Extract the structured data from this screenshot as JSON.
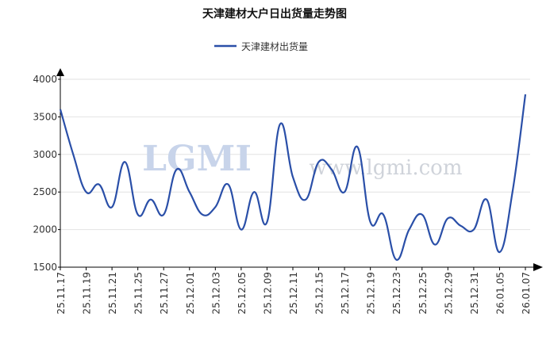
{
  "chart_data": {
    "type": "line",
    "title": "天津建材大户日出货量走势图",
    "watermark": [
      "LGMI",
      "www.lgmi.com"
    ],
    "categories": [
      "25.11.17",
      null,
      "25.11.19",
      null,
      "25.11.21",
      null,
      "25.11.25",
      null,
      "25.11.27",
      null,
      "25.12.01",
      null,
      "25.12.03",
      null,
      "25.12.05",
      null,
      "25.12.09",
      null,
      "25.12.11",
      null,
      "25.12.15",
      null,
      "25.12.17",
      null,
      "25.12.19",
      null,
      "25.12.23",
      null,
      "25.12.25",
      null,
      "25.12.29",
      null,
      "25.12.31",
      null,
      "26.01.05",
      null,
      "26.01.07"
    ],
    "series": [
      {
        "name": "天津建材出货量",
        "color": "#2a4fa8",
        "values": [
          3600,
          3000,
          2500,
          2600,
          2300,
          2900,
          2200,
          2400,
          2200,
          2800,
          2500,
          2200,
          2300,
          2600,
          2000,
          2500,
          2100,
          3400,
          2700,
          2400,
          2900,
          2800,
          2500,
          3100,
          2100,
          2200,
          1600,
          2000,
          2200,
          1800,
          2150,
          2050,
          2000,
          2400,
          1700,
          2500,
          3800
        ]
      }
    ],
    "ylim": [
      1500,
      4000
    ],
    "yticks": [
      1500,
      2000,
      2500,
      3000,
      3500,
      4000
    ],
    "grid": true,
    "legend": "top"
  }
}
